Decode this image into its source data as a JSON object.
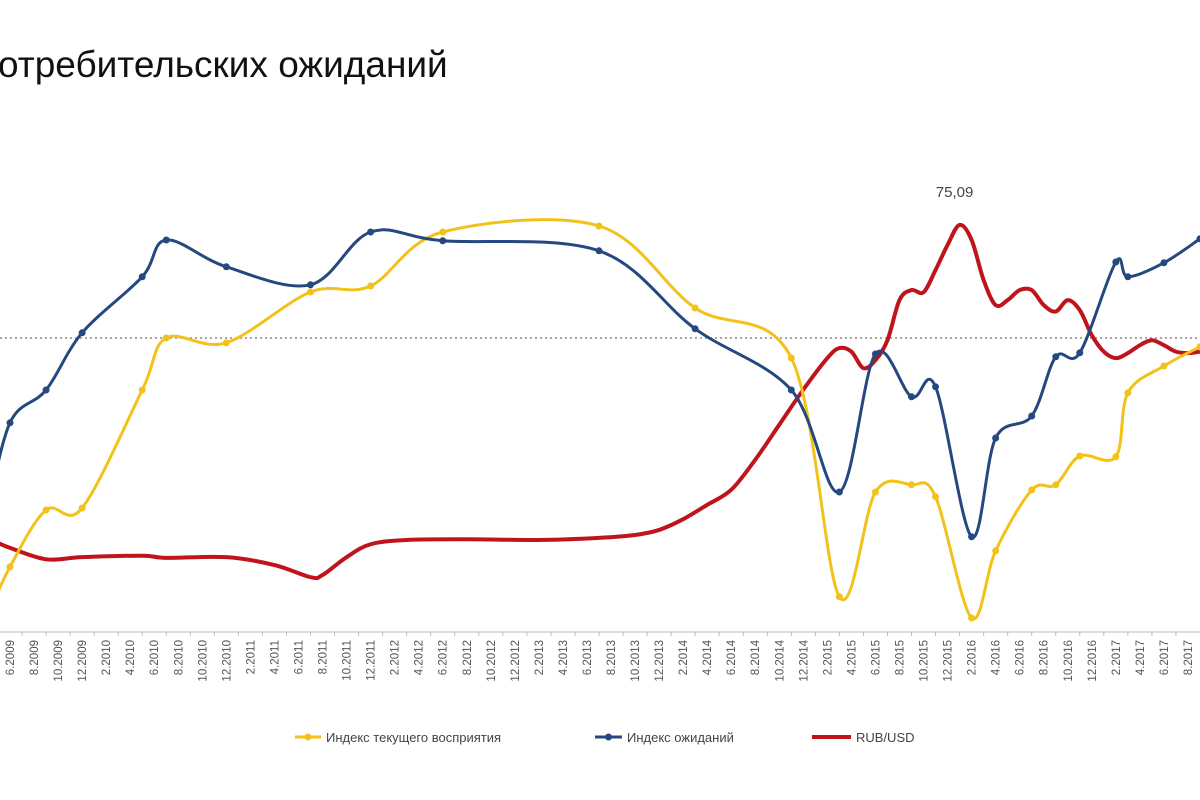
{
  "chart_data": {
    "type": "line",
    "title": "отребительских ожиданий",
    "xlabel": "",
    "ylabel": "",
    "grid": false,
    "reference_line": {
      "series_axis": "index",
      "value": 100,
      "style": "dotted"
    },
    "legend_position": "bottom",
    "annotation": {
      "text": "75,09",
      "series": "RUB/USD",
      "date": "1.2016"
    },
    "x_tick_labels": [
      "6.2009",
      "8.2009",
      "10.2009",
      "12.2009",
      "2.2010",
      "4.2010",
      "6.2010",
      "8.2010",
      "10.2010",
      "12.2010",
      "2.2011",
      "4.2011",
      "6.2011",
      "8.2011",
      "10.2011",
      "12.2011",
      "2.2012",
      "4.2012",
      "6.2012",
      "8.2012",
      "10.2012",
      "12.2012",
      "2.2013",
      "4.2013",
      "6.2013",
      "8.2013",
      "10.2013",
      "12.2013",
      "2.2014",
      "4.2014",
      "6.2014",
      "8.2014",
      "10.2014",
      "12.2014",
      "2.2015",
      "4.2015",
      "6.2015",
      "8.2015",
      "10.2015",
      "12.2015",
      "2.2016",
      "4.2016",
      "6.2016",
      "8.2016",
      "10.2016",
      "12.2016",
      "2.2017",
      "4.2017",
      "6.2017",
      "8.2017"
    ],
    "series": [
      {
        "name": "Индекс текущего восприятия",
        "color": "#f2c21b",
        "axis": "index",
        "markers": true,
        "points": [
          [
            "4.2009",
            29.5
          ],
          [
            "6.2009",
            42.8
          ],
          [
            "9.2009",
            57.0
          ],
          [
            "12.2009",
            57.5
          ],
          [
            "5.2010",
            87.0
          ],
          [
            "7.2010",
            100.0
          ],
          [
            "12.2010",
            98.8
          ],
          [
            "7.2011",
            111.5
          ],
          [
            "12.2011",
            113.0
          ],
          [
            "6.2012",
            126.5
          ],
          [
            "7.2013",
            128.0
          ],
          [
            "3.2014",
            107.5
          ],
          [
            "11.2014",
            95.0
          ],
          [
            "3.2015",
            35.3
          ],
          [
            "6.2015",
            61.5
          ],
          [
            "9.2015",
            63.3
          ],
          [
            "11.2015",
            60.3
          ],
          [
            "2.2016",
            30.0
          ],
          [
            "4.2016",
            46.8
          ],
          [
            "7.2016",
            62.0
          ],
          [
            "9.2016",
            63.3
          ],
          [
            "11.2016",
            70.5
          ],
          [
            "2.2017",
            70.3
          ],
          [
            "3.2017",
            86.3
          ],
          [
            "6.2017",
            93.0
          ],
          [
            "9.2017",
            97.8
          ]
        ]
      },
      {
        "name": "Индекс ожиданий",
        "color": "#25487f",
        "axis": "index",
        "markers": true,
        "points": [
          [
            "4.2009",
            54.5
          ],
          [
            "6.2009",
            78.8
          ],
          [
            "9.2009",
            87.0
          ],
          [
            "12.2009",
            101.3
          ],
          [
            "5.2010",
            115.3
          ],
          [
            "7.2010",
            124.5
          ],
          [
            "12.2010",
            117.8
          ],
          [
            "7.2011",
            113.3
          ],
          [
            "12.2011",
            126.5
          ],
          [
            "6.2012",
            124.3
          ],
          [
            "7.2013",
            121.8
          ],
          [
            "3.2014",
            102.3
          ],
          [
            "11.2014",
            87.0
          ],
          [
            "3.2015",
            61.5
          ],
          [
            "6.2015",
            96.0
          ],
          [
            "9.2015",
            85.3
          ],
          [
            "11.2015",
            87.8
          ],
          [
            "2.2016",
            50.3
          ],
          [
            "4.2016",
            75.0
          ],
          [
            "7.2016",
            80.5
          ],
          [
            "9.2016",
            95.3
          ],
          [
            "11.2016",
            96.3
          ],
          [
            "2.2017",
            119.0
          ],
          [
            "3.2017",
            115.3
          ],
          [
            "6.2017",
            118.8
          ],
          [
            "9.2017",
            124.8
          ]
        ]
      },
      {
        "name": "RUB/USD",
        "color": "#c0141c",
        "axis": "rub",
        "markers": false,
        "points": [
          [
            "5.2009",
            30.7
          ],
          [
            "6.2009",
            30.0
          ],
          [
            "9.2009",
            28.4
          ],
          [
            "12.2009",
            28.7
          ],
          [
            "5.2010",
            28.9
          ],
          [
            "7.2010",
            28.6
          ],
          [
            "12.2010",
            28.7
          ],
          [
            "4.2011",
            27.6
          ],
          [
            "7.2011",
            25.9
          ],
          [
            "8.2011",
            26.2
          ],
          [
            "10.2011",
            28.7
          ],
          [
            "12.2011",
            30.5
          ],
          [
            "3.2012",
            31.1
          ],
          [
            "8.2012",
            31.2
          ],
          [
            "2.2013",
            31.1
          ],
          [
            "7.2013",
            31.4
          ],
          [
            "10.2013",
            31.8
          ],
          [
            "12.2013",
            32.5
          ],
          [
            "2.2014",
            34.0
          ],
          [
            "4.2014",
            36.0
          ],
          [
            "6.2014",
            38.1
          ],
          [
            "8.2014",
            42.3
          ],
          [
            "10.2014",
            47.2
          ],
          [
            "12.2014",
            52.1
          ],
          [
            "2.2015",
            56.5
          ],
          [
            "3.2015",
            57.9
          ],
          [
            "4.2015",
            57.4
          ],
          [
            "5.2015",
            55.1
          ],
          [
            "6.2015",
            56.2
          ],
          [
            "7.2015",
            59.0
          ],
          [
            "8.2015",
            64.6
          ],
          [
            "9.2015",
            66.0
          ],
          [
            "10.2015",
            65.7
          ],
          [
            "11.2015",
            68.8
          ],
          [
            "12.2015",
            72.3
          ],
          [
            "1.2016",
            75.09
          ],
          [
            "2.2016",
            73.0
          ],
          [
            "3.2016",
            67.4
          ],
          [
            "4.2016",
            63.9
          ],
          [
            "5.2016",
            64.6
          ],
          [
            "6.2016",
            66.0
          ],
          [
            "7.2016",
            66.0
          ],
          [
            "8.2016",
            63.9
          ],
          [
            "9.2016",
            63.0
          ],
          [
            "10.2016",
            64.6
          ],
          [
            "11.2016",
            63.2
          ],
          [
            "12.2016",
            59.7
          ],
          [
            "1.2017",
            57.4
          ],
          [
            "2.2017",
            56.5
          ],
          [
            "3.2017",
            57.2
          ],
          [
            "4.2017",
            58.3
          ],
          [
            "5.2017",
            59.0
          ],
          [
            "6.2017",
            58.3
          ],
          [
            "7.2017",
            57.4
          ],
          [
            "8.2017",
            57.2
          ],
          [
            "9.2017",
            57.4
          ]
        ]
      }
    ]
  }
}
